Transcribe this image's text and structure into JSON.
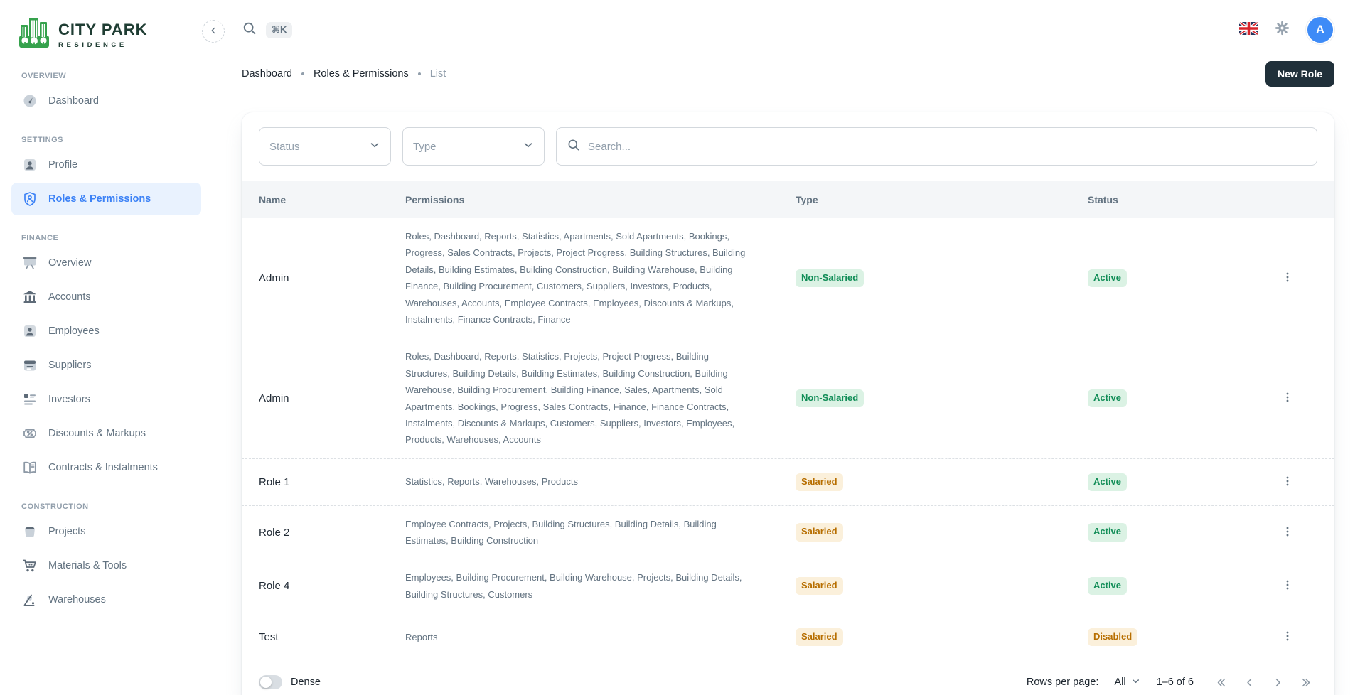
{
  "brand": {
    "title": "CITY PARK",
    "subtitle": "RESIDENCE"
  },
  "topbar": {
    "shortcut_badge": "⌘K",
    "avatar_initial": "A",
    "icons": {
      "search": "magnifier",
      "language": "uk-flag",
      "settings": "gear",
      "collapse": "chevron-left"
    }
  },
  "breadcrumb": {
    "items": [
      "Dashboard",
      "Roles & Permissions",
      "List"
    ]
  },
  "actions": {
    "new_role_label": "New Role"
  },
  "sidebar": {
    "sections": [
      {
        "label": "OVERVIEW",
        "items": [
          {
            "label": "Dashboard",
            "icon": "gauge-icon",
            "active": false
          }
        ]
      },
      {
        "label": "SETTINGS",
        "items": [
          {
            "label": "Profile",
            "icon": "user-card-icon",
            "active": false
          },
          {
            "label": "Roles & Permissions",
            "icon": "shield-user-icon",
            "active": true
          }
        ]
      },
      {
        "label": "FINANCE",
        "items": [
          {
            "label": "Overview",
            "icon": "presentation-icon",
            "active": false
          },
          {
            "label": "Accounts",
            "icon": "bank-icon",
            "active": false
          },
          {
            "label": "Employees",
            "icon": "person-icon",
            "active": false
          },
          {
            "label": "Suppliers",
            "icon": "calendar-icon",
            "active": false
          },
          {
            "label": "Investors",
            "icon": "list-icon",
            "active": false
          },
          {
            "label": "Discounts & Markups",
            "icon": "ticket-percent-icon",
            "active": false
          },
          {
            "label": "Contracts & Instalments",
            "icon": "open-book-icon",
            "active": false
          }
        ]
      },
      {
        "label": "CONSTRUCTION",
        "items": [
          {
            "label": "Projects",
            "icon": "pot-icon",
            "active": false
          },
          {
            "label": "Materials & Tools",
            "icon": "cart-icon",
            "active": false
          },
          {
            "label": "Warehouses",
            "icon": "trolley-icon",
            "active": false
          }
        ]
      }
    ]
  },
  "filters": {
    "status_label": "Status",
    "type_label": "Type",
    "search_placeholder": "Search..."
  },
  "table": {
    "columns": [
      "Name",
      "Permissions",
      "Type",
      "Status"
    ],
    "rows": [
      {
        "name": "Admin",
        "permissions": "Roles, Dashboard, Reports, Statistics, Apartments, Sold Apartments, Bookings, Progress, Sales Contracts, Projects, Project Progress, Building Structures, Building Details, Building Estimates, Building Construction, Building Warehouse, Building Finance, Building Procurement, Customers, Suppliers, Investors, Products, Warehouses, Accounts, Employee Contracts, Employees, Discounts & Markups, Instalments, Finance Contracts, Finance",
        "type": "Non-Salaried",
        "type_tone": "success",
        "status": "Active",
        "status_tone": "success"
      },
      {
        "name": "Admin",
        "permissions": "Roles, Dashboard, Reports, Statistics, Projects, Project Progress, Building Structures, Building Details, Building Estimates, Building Construction, Building Warehouse, Building Procurement, Building Finance, Sales, Apartments, Sold Apartments, Bookings, Progress, Sales Contracts, Finance, Finance Contracts, Instalments, Discounts & Markups, Customers, Suppliers, Investors, Employees, Products, Warehouses, Accounts",
        "type": "Non-Salaried",
        "type_tone": "success",
        "status": "Active",
        "status_tone": "success"
      },
      {
        "name": "Role 1",
        "permissions": "Statistics, Reports, Warehouses, Products",
        "type": "Salaried",
        "type_tone": "warning",
        "status": "Active",
        "status_tone": "success"
      },
      {
        "name": "Role 2",
        "permissions": "Employee Contracts, Projects, Building Structures, Building Details, Building Estimates, Building Construction",
        "type": "Salaried",
        "type_tone": "warning",
        "status": "Active",
        "status_tone": "success"
      },
      {
        "name": "Role 4",
        "permissions": "Employees, Building Procurement, Building Warehouse, Projects, Building Details, Building Structures, Customers",
        "type": "Salaried",
        "type_tone": "warning",
        "status": "Active",
        "status_tone": "success"
      },
      {
        "name": "Test",
        "permissions": "Reports",
        "type": "Salaried",
        "type_tone": "warning",
        "status": "Disabled",
        "status_tone": "warning"
      }
    ]
  },
  "footer": {
    "dense_label": "Dense",
    "rows_per_page_label": "Rows per page:",
    "rows_per_page_value": "All",
    "range_label": "1–6 of 6"
  },
  "colors": {
    "primary_blue": "#3C82F6",
    "active_item_bg": "#E9F2FE",
    "logo_green": "#36A24D",
    "dark_button": "#20303A",
    "success_text": "#118D57",
    "success_bg": "#DBF2E4",
    "warning_text": "#B76E00",
    "warning_bg": "#FBF0DB",
    "table_header_bg": "#F4F6F8",
    "muted_text": "#637381"
  }
}
